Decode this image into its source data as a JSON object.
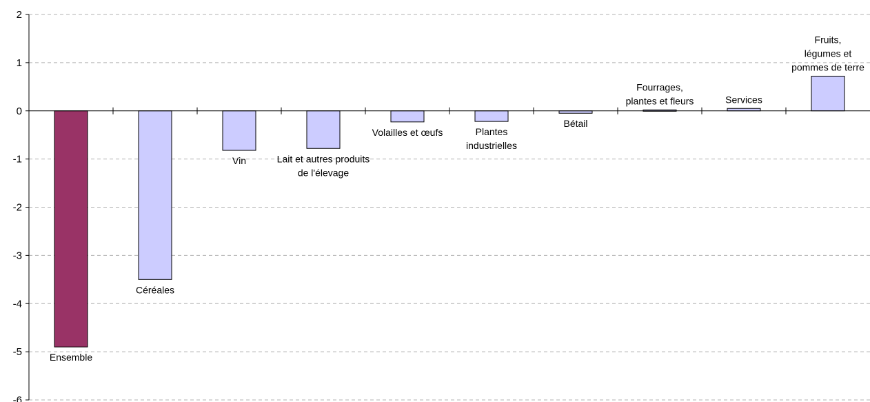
{
  "chart_data": {
    "type": "bar",
    "title": "",
    "xlabel": "",
    "ylabel": "",
    "ylim": [
      -6,
      2
    ],
    "yticks": [
      2,
      1,
      0,
      -1,
      -2,
      -3,
      -4,
      -5,
      -6
    ],
    "grid": true,
    "legend": "none",
    "categories": [
      "Ensemble",
      "Céréales",
      "Vin",
      "Lait et autres produits de l'élevage",
      "Volailles et œufs",
      "Plantes industrielles",
      "Bétail",
      "Fourrages, plantes et fleurs",
      "Services",
      "Fruits, légumes et pommes de terre"
    ],
    "values": [
      -4.9,
      -3.5,
      -0.82,
      -0.78,
      -0.23,
      -0.22,
      -0.05,
      0.02,
      0.05,
      0.72
    ],
    "bar_colors": [
      "#993366",
      "#ccccff",
      "#ccccff",
      "#ccccff",
      "#ccccff",
      "#ccccff",
      "#ccccff",
      "#ccccff",
      "#ccccff",
      "#ccccff"
    ],
    "label_lines": [
      [
        "Ensemble"
      ],
      [
        "Céréales"
      ],
      [
        "Vin"
      ],
      [
        "Lait et autres produits",
        "de l'élevage"
      ],
      [
        "Volailles et œufs"
      ],
      [
        "Plantes",
        "industrielles"
      ],
      [
        "Bétail"
      ],
      [
        "Fourrages,",
        "plantes et fleurs"
      ],
      [
        "Services"
      ],
      [
        "Fruits,",
        "légumes et",
        "pommes de terre"
      ]
    ]
  }
}
